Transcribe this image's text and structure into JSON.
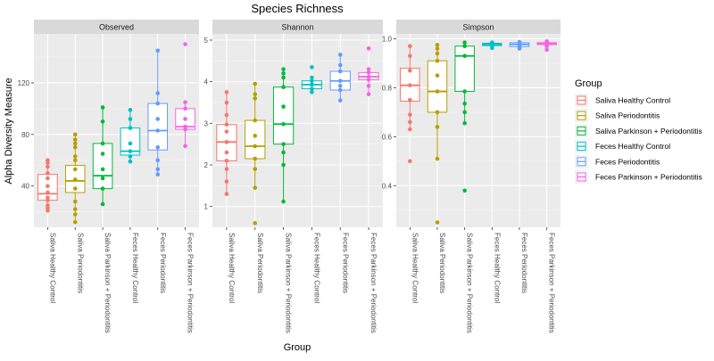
{
  "chart_data": {
    "type": "box",
    "title": "Species Richness",
    "xlabel": "Group",
    "ylabel": "Alpha Diversity Measure",
    "legend": {
      "title": "Group",
      "position": "right",
      "entries": [
        "Saliva Healthy Control",
        "Saliva Periodontitis",
        "Saliva Parkinson + Periodontitis",
        "Feces Healthy Control",
        "Feces Periodontitis",
        "Feces Parkinson + Periodontitis"
      ]
    },
    "colors": [
      "#F8766D",
      "#B79F00",
      "#00BA38",
      "#00BFC4",
      "#619CFF",
      "#F564E3"
    ],
    "categories": [
      "Saliva Healthy Control",
      "Saliva Periodontitis",
      "Saliva Parkinson + Periodontitis",
      "Feces Healthy Control",
      "Feces Periodontitis",
      "Feces Parkinson + Periodontitis"
    ],
    "grid": true,
    "panels": [
      {
        "name": "Observed",
        "ylim": [
          8,
          158
        ],
        "yticks": [
          40,
          80,
          120
        ],
        "boxes": [
          {
            "q1": 29,
            "median": 34,
            "q3": 49,
            "whisker_low": 21,
            "whisker_high": 60
          },
          {
            "q1": 35,
            "median": 44,
            "q3": 56,
            "whisker_low": 12,
            "whisker_high": 80
          },
          {
            "q1": 38,
            "median": 48,
            "q3": 73,
            "whisker_low": 26,
            "whisker_high": 101
          },
          {
            "q1": 64,
            "median": 67,
            "q3": 85,
            "whisker_low": 59,
            "whisker_high": 99
          },
          {
            "q1": 68,
            "median": 83,
            "q3": 104,
            "whisker_low": 49,
            "whisker_high": 145
          },
          {
            "q1": 84,
            "median": 86,
            "q3": 100,
            "whisker_low": 71,
            "whisker_high": 105
          }
        ],
        "points": [
          [
            21,
            23,
            25,
            29,
            31,
            35,
            40,
            46,
            50,
            55,
            58,
            60
          ],
          [
            12,
            18,
            22,
            28,
            38,
            45,
            53,
            60,
            63,
            70,
            73,
            76,
            80
          ],
          [
            26,
            38,
            46,
            53,
            65,
            73,
            90,
            101
          ],
          [
            59,
            63,
            67,
            73,
            85,
            92,
            99
          ],
          [
            49,
            53,
            60,
            70,
            83,
            92,
            104,
            112,
            145
          ],
          [
            71,
            84,
            86,
            92,
            100,
            105,
            150
          ]
        ]
      },
      {
        "name": "Shannon",
        "ylim": [
          0.5,
          5.15
        ],
        "yticks": [
          1,
          2,
          3,
          4,
          5
        ],
        "boxes": [
          {
            "q1": 2.1,
            "median": 2.55,
            "q3": 2.97,
            "whisker_low": 1.3,
            "whisker_high": 3.75
          },
          {
            "q1": 2.15,
            "median": 2.45,
            "q3": 3.07,
            "whisker_low": 1.45,
            "whisker_high": 3.95
          },
          {
            "q1": 2.5,
            "median": 2.98,
            "q3": 3.87,
            "whisker_low": 1.12,
            "whisker_high": 4.3
          },
          {
            "q1": 3.83,
            "median": 3.93,
            "q3": 4.02,
            "whisker_low": 3.75,
            "whisker_high": 4.1
          },
          {
            "q1": 3.8,
            "median": 4.02,
            "q3": 4.25,
            "whisker_low": 3.55,
            "whisker_high": 4.65
          },
          {
            "q1": 4.05,
            "median": 4.12,
            "q3": 4.22,
            "whisker_low": 3.7,
            "whisker_high": 4.3
          }
        ],
        "points": [
          [
            1.3,
            1.6,
            1.9,
            2.1,
            2.3,
            2.55,
            2.8,
            2.97,
            3.2,
            3.5,
            3.75
          ],
          [
            0.6,
            1.45,
            1.9,
            2.15,
            2.45,
            2.7,
            3.07,
            3.6,
            3.7,
            3.95
          ],
          [
            1.12,
            2.0,
            2.3,
            2.5,
            2.98,
            3.4,
            3.87,
            4.1,
            4.2,
            4.3
          ],
          [
            3.75,
            3.83,
            3.93,
            4.02,
            4.1,
            4.35
          ],
          [
            3.55,
            3.8,
            3.9,
            4.02,
            4.25,
            4.4,
            4.65
          ],
          [
            3.7,
            3.9,
            4.05,
            4.12,
            4.22,
            4.3,
            4.8
          ]
        ]
      },
      {
        "name": "Simpson",
        "ylim": [
          0.23,
          1.02
        ],
        "yticks": [
          0.4,
          0.6,
          0.8,
          1.0
        ],
        "boxes": [
          {
            "q1": 0.745,
            "median": 0.81,
            "q3": 0.88,
            "whisker_low": 0.63,
            "whisker_high": 0.97
          },
          {
            "q1": 0.7,
            "median": 0.785,
            "q3": 0.91,
            "whisker_low": 0.51,
            "whisker_high": 0.975
          },
          {
            "q1": 0.785,
            "median": 0.93,
            "q3": 0.97,
            "whisker_low": 0.655,
            "whisker_high": 0.985
          },
          {
            "q1": 0.972,
            "median": 0.977,
            "q3": 0.982,
            "whisker_low": 0.962,
            "whisker_high": 0.985
          },
          {
            "q1": 0.968,
            "median": 0.977,
            "q3": 0.984,
            "whisker_low": 0.96,
            "whisker_high": 0.987
          },
          {
            "q1": 0.976,
            "median": 0.98,
            "q3": 0.984,
            "whisker_low": 0.97,
            "whisker_high": 0.99
          }
        ],
        "points": [
          [
            0.5,
            0.63,
            0.66,
            0.69,
            0.75,
            0.81,
            0.87,
            0.93,
            0.97
          ],
          [
            0.25,
            0.51,
            0.64,
            0.7,
            0.785,
            0.85,
            0.91,
            0.94,
            0.96,
            0.975
          ],
          [
            0.38,
            0.655,
            0.7,
            0.735,
            0.785,
            0.93,
            0.97,
            0.985
          ],
          [
            0.962,
            0.972,
            0.977,
            0.982,
            0.985
          ],
          [
            0.96,
            0.968,
            0.977,
            0.984,
            0.987
          ],
          [
            0.955,
            0.97,
            0.98,
            0.984,
            0.99
          ]
        ]
      }
    ]
  }
}
